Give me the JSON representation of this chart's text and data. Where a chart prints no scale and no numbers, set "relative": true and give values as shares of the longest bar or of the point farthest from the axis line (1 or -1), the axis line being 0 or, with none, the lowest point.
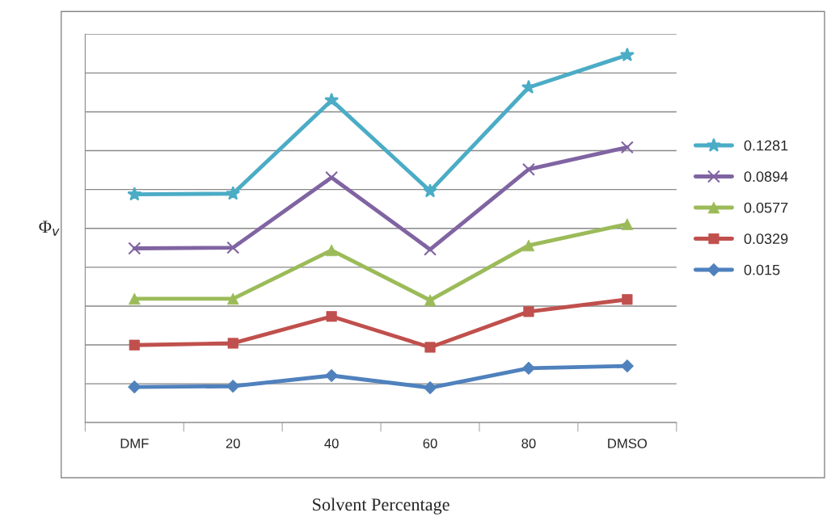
{
  "chart_data": {
    "type": "line",
    "xlabel": "Solvent Percentage",
    "ylabel": "Φ$_{v}$",
    "categories": [
      "DMF",
      "20",
      "40",
      "60",
      "80",
      "DMSO"
    ],
    "relative": true,
    "grid": "y",
    "legend": "right",
    "line_style": "solid",
    "series": [
      {
        "name": "0.1281",
        "color": "#4bacc6",
        "marker": "star",
        "values": [
          0.621,
          0.623,
          0.877,
          0.63,
          0.912,
          1
        ]
      },
      {
        "name": "0.0894",
        "color": "#8064a2",
        "marker": "cross",
        "values": [
          0.474,
          0.476,
          0.667,
          0.471,
          0.689,
          0.749
        ]
      },
      {
        "name": "0.0577",
        "color": "#9bbb59",
        "marker": "triangle",
        "values": [
          0.337,
          0.337,
          0.469,
          0.333,
          0.482,
          0.54
        ]
      },
      {
        "name": "0.0329",
        "color": "#c0504d",
        "marker": "square",
        "values": [
          0.211,
          0.216,
          0.289,
          0.205,
          0.302,
          0.335
        ]
      },
      {
        "name": "0.015",
        "color": "#4f81bd",
        "marker": "diamond",
        "values": [
          0.097,
          0.099,
          0.128,
          0.095,
          0.148,
          0.154
        ]
      }
    ]
  }
}
